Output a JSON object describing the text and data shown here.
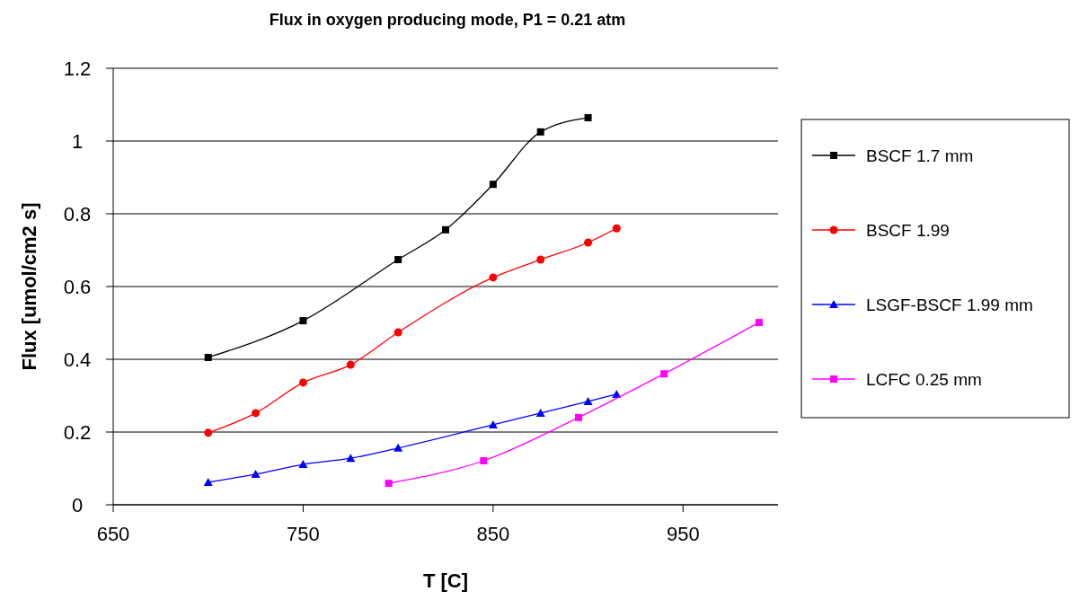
{
  "chart_data": {
    "type": "line",
    "title": "Flux in oxygen producing mode, P1 = 0.21 atm",
    "xlabel": "T [C]",
    "ylabel": "Flux [umol/cm2 s]",
    "xlim": [
      650,
      1000
    ],
    "xticks": [
      650,
      750,
      850,
      950
    ],
    "ylim": [
      0,
      1.2
    ],
    "yticks": [
      0,
      0.2,
      0.4,
      0.6,
      0.8,
      1,
      1.2
    ],
    "grid": "y",
    "legend": "right",
    "series": [
      {
        "name": "BSCF 1.7 mm",
        "color": "#000000",
        "marker": "square",
        "x": [
          700,
          750,
          800,
          825,
          850,
          875,
          900
        ],
        "values": [
          0.405,
          0.506,
          0.674,
          0.756,
          0.881,
          1.025,
          1.064
        ]
      },
      {
        "name": "BSCF 1.99",
        "color": "#ff0000",
        "marker": "circle",
        "x": [
          700,
          725,
          750,
          775,
          800,
          850,
          875,
          900,
          915
        ],
        "values": [
          0.198,
          0.252,
          0.336,
          0.385,
          0.474,
          0.625,
          0.674,
          0.721,
          0.76
        ]
      },
      {
        "name": "LSGF-BSCF 1.99 mm",
        "color": "#0000ff",
        "marker": "triangle",
        "x": [
          700,
          725,
          750,
          775,
          800,
          850,
          875,
          900,
          915
        ],
        "values": [
          0.062,
          0.084,
          0.111,
          0.128,
          0.156,
          0.22,
          0.252,
          0.284,
          0.304
        ]
      },
      {
        "name": "LCFC 0.25 mm",
        "color": "#ff00ff",
        "marker": "square",
        "x": [
          795,
          845,
          895,
          940,
          990
        ],
        "values": [
          0.059,
          0.121,
          0.24,
          0.36,
          0.501
        ]
      }
    ]
  }
}
